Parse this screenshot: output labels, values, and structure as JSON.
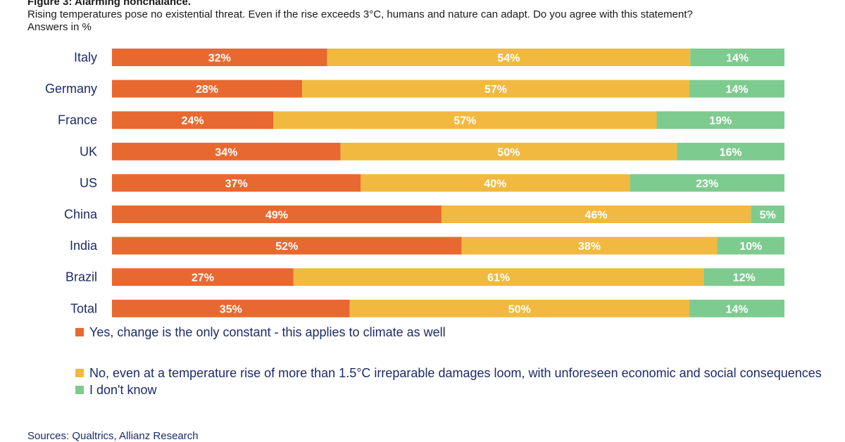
{
  "header": {
    "figure_title": "Figure 3: Alarming nonchalance.",
    "subtitle": "Rising temperatures pose no existential threat. Even if the rise exceeds 3°C, humans and nature can adapt. Do you agree with this statement?",
    "units": "Answers in %"
  },
  "source": "Sources: Qualtrics, Allianz Research",
  "colors": {
    "yes": "#e8692f",
    "no": "#f2b940",
    "dontknow": "#7ecb8f"
  },
  "chart_data": {
    "type": "bar",
    "orientation": "horizontal",
    "stacked": true,
    "categories": [
      "Italy",
      "Germany",
      "France",
      "UK",
      "US",
      "China",
      "India",
      "Brazil",
      "Total"
    ],
    "series": [
      {
        "name": "Yes, change is the only constant - this applies to climate as well",
        "values": [
          32,
          28,
          24,
          34,
          37,
          49,
          52,
          27,
          35
        ]
      },
      {
        "name": "No, even at a temperature rise of more than 1.5°C irreparable damages loom, with unforeseen economic and social consequences",
        "values": [
          54,
          57,
          57,
          50,
          40,
          46,
          38,
          61,
          50
        ]
      },
      {
        "name": "I don't know",
        "values": [
          14,
          14,
          19,
          16,
          23,
          5,
          10,
          12,
          14
        ]
      }
    ],
    "value_suffix": "%",
    "legend_position": "bottom",
    "grid": false
  }
}
